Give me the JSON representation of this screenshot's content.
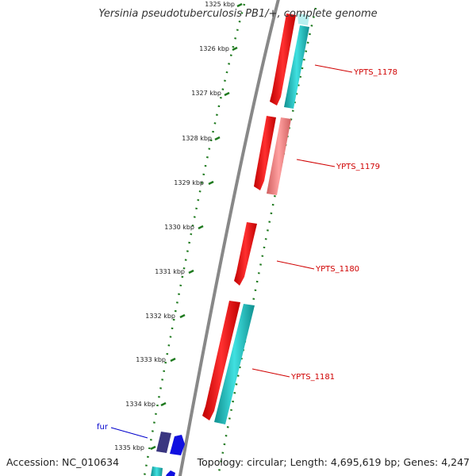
{
  "title": "Yersinia pseudotuberculosis PB1/+, complete genome",
  "accession_label": "Accession: NC_010634",
  "topology_label": "Topology: circular; Length: 4,695,619 bp; Genes: 4,247",
  "ticks": [
    "1325 kbp",
    "1326 kbp",
    "1327 kbp",
    "1328 kbp",
    "1329 kbp",
    "1330 kbp",
    "1331 kbp",
    "1332 kbp",
    "1333 kbp",
    "1334 kbp",
    "1335 kbp"
  ],
  "gene_labels": [
    "YPTS_1178",
    "YPTS_1179",
    "YPTS_1180",
    "YPTS_1181",
    "fur"
  ],
  "colors": {
    "backbone": "#888888",
    "tick": "#1f7a1f",
    "cds_red": "#ff0000",
    "cds_pink": "#f08080",
    "cds_cyan": "#20c0c0",
    "cds_blue": "#1010e0",
    "cds_navy": "#3a3680",
    "label_red": "#d00000",
    "label_blue": "#0000cc"
  }
}
